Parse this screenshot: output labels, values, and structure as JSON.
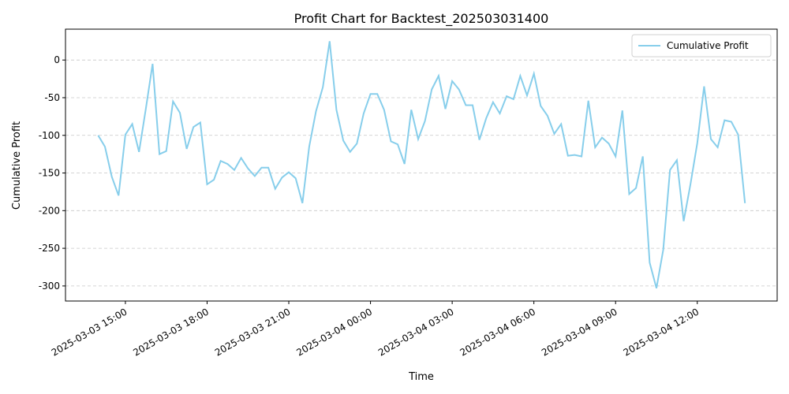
{
  "chart_data": {
    "type": "line",
    "title": "Profit Chart for Backtest_202503031400",
    "xlabel": "Time",
    "ylabel": "Cumulative Profit",
    "x": [
      "2025-03-03 14:00",
      "2025-03-03 14:15",
      "2025-03-03 14:30",
      "2025-03-03 14:45",
      "2025-03-03 15:00",
      "2025-03-03 15:15",
      "2025-03-03 15:30",
      "2025-03-03 15:45",
      "2025-03-03 16:00",
      "2025-03-03 16:15",
      "2025-03-03 16:30",
      "2025-03-03 16:45",
      "2025-03-03 17:00",
      "2025-03-03 17:15",
      "2025-03-03 17:30",
      "2025-03-03 17:45",
      "2025-03-03 18:00",
      "2025-03-03 18:15",
      "2025-03-03 18:30",
      "2025-03-03 18:45",
      "2025-03-03 19:00",
      "2025-03-03 19:15",
      "2025-03-03 19:30",
      "2025-03-03 19:45",
      "2025-03-03 20:00",
      "2025-03-03 20:15",
      "2025-03-03 20:30",
      "2025-03-03 20:45",
      "2025-03-03 21:00",
      "2025-03-03 21:15",
      "2025-03-03 21:30",
      "2025-03-03 21:45",
      "2025-03-03 22:00",
      "2025-03-03 22:15",
      "2025-03-03 22:30",
      "2025-03-03 22:45",
      "2025-03-03 23:00",
      "2025-03-03 23:15",
      "2025-03-03 23:30",
      "2025-03-03 23:45",
      "2025-03-04 00:00",
      "2025-03-04 00:15",
      "2025-03-04 00:30",
      "2025-03-04 00:45",
      "2025-03-04 01:00",
      "2025-03-04 01:15",
      "2025-03-04 01:30",
      "2025-03-04 01:45",
      "2025-03-04 02:00",
      "2025-03-04 02:15",
      "2025-03-04 02:30",
      "2025-03-04 02:45",
      "2025-03-04 03:00",
      "2025-03-04 03:15",
      "2025-03-04 03:30",
      "2025-03-04 03:45",
      "2025-03-04 04:00",
      "2025-03-04 04:15",
      "2025-03-04 04:30",
      "2025-03-04 04:45",
      "2025-03-04 05:00",
      "2025-03-04 05:15",
      "2025-03-04 05:30",
      "2025-03-04 05:45",
      "2025-03-04 06:00",
      "2025-03-04 06:15",
      "2025-03-04 06:30",
      "2025-03-04 06:45",
      "2025-03-04 07:00",
      "2025-03-04 07:15",
      "2025-03-04 07:30",
      "2025-03-04 07:45",
      "2025-03-04 08:00",
      "2025-03-04 08:15",
      "2025-03-04 08:30",
      "2025-03-04 08:45",
      "2025-03-04 09:00",
      "2025-03-04 09:15",
      "2025-03-04 09:30",
      "2025-03-04 09:45",
      "2025-03-04 10:00",
      "2025-03-04 10:15",
      "2025-03-04 10:30",
      "2025-03-04 10:45",
      "2025-03-04 11:00",
      "2025-03-04 11:15",
      "2025-03-04 11:30",
      "2025-03-04 11:45",
      "2025-03-04 12:00",
      "2025-03-04 12:15",
      "2025-03-04 12:30",
      "2025-03-04 12:45",
      "2025-03-04 13:00",
      "2025-03-04 13:15",
      "2025-03-04 13:30",
      "2025-03-04 13:45"
    ],
    "series": [
      {
        "name": "Cumulative Profit",
        "color": "#87ceeb",
        "values": [
          -100,
          -115,
          -155,
          -180,
          -99,
          -85,
          -122,
          -65,
          -5,
          -125,
          -121,
          -55,
          -70,
          -118,
          -89,
          -83,
          -165,
          -159,
          -134,
          -138,
          -146,
          -130,
          -144,
          -154,
          -143,
          -143,
          -171,
          -156,
          -149,
          -157,
          -190,
          -115,
          -68,
          -36,
          25,
          -66,
          -107,
          -122,
          -111,
          -71,
          -45,
          -45,
          -66,
          -108,
          -112,
          -138,
          -66,
          -105,
          -81,
          -39,
          -21,
          -65,
          -28,
          -39,
          -60,
          -60,
          -106,
          -77,
          -56,
          -71,
          -48,
          -52,
          -21,
          -47,
          -18,
          -61,
          -74,
          -98,
          -85,
          -127,
          -126,
          -128,
          -54,
          -116,
          -103,
          -111,
          -128,
          -67,
          -178,
          -170,
          -128,
          -269,
          -303,
          -252,
          -146,
          -133,
          -214,
          -165,
          -110,
          -35,
          -105,
          -116,
          -80,
          -82,
          -99,
          -190
        ]
      }
    ],
    "xlim": [
      "2025-03-03 12:48",
      "2025-03-04 14:56"
    ],
    "xticks": [
      "2025-03-03 15:00",
      "2025-03-03 18:00",
      "2025-03-03 21:00",
      "2025-03-04 00:00",
      "2025-03-04 03:00",
      "2025-03-04 06:00",
      "2025-03-04 09:00",
      "2025-03-04 12:00"
    ],
    "ylim": [
      -320,
      41
    ],
    "yticks": [
      -300,
      -250,
      -200,
      -150,
      -100,
      -50,
      0
    ],
    "grid": "y",
    "legend": "upper right"
  }
}
